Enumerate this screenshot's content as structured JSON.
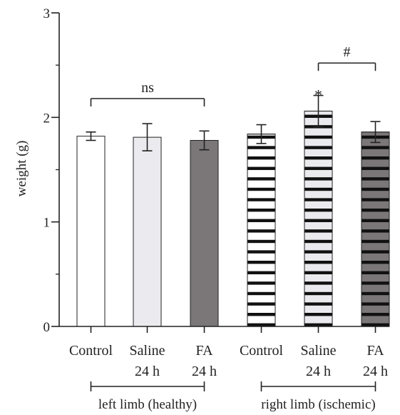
{
  "chart_data": {
    "type": "bar",
    "title": "",
    "xlabel": "",
    "ylabel": "weight (g)",
    "ylim": [
      0,
      3
    ],
    "yticks": [
      0,
      1,
      2,
      3
    ],
    "grid": false,
    "categories": [
      {
        "line1": "Control",
        "line2": ""
      },
      {
        "line1": "Saline",
        "line2": "24 h"
      },
      {
        "line1": "FA",
        "line2": "24 h"
      },
      {
        "line1": "Control",
        "line2": ""
      },
      {
        "line1": "Saline",
        "line2": "24 h"
      },
      {
        "line1": "FA",
        "line2": "24 h"
      }
    ],
    "bars": [
      {
        "value": 1.82,
        "error": 0.04,
        "fill": "#ffffff",
        "pattern": "none"
      },
      {
        "value": 1.81,
        "error": 0.13,
        "fill": "#ebebef",
        "pattern": "none"
      },
      {
        "value": 1.78,
        "error": 0.09,
        "fill": "#7b7779",
        "pattern": "none"
      },
      {
        "value": 1.84,
        "error": 0.09,
        "fill": "#ffffff",
        "pattern": "stripes"
      },
      {
        "value": 2.06,
        "error": 0.15,
        "fill": "#ebebef",
        "pattern": "stripes"
      },
      {
        "value": 1.86,
        "error": 0.1,
        "fill": "#7b7779",
        "pattern": "stripes"
      }
    ],
    "groups": [
      {
        "label": "left limb (healthy)",
        "from": 0,
        "to": 2
      },
      {
        "label": "right limb (ischemic)",
        "from": 3,
        "to": 5
      }
    ],
    "annotations": [
      {
        "type": "bracket",
        "text": "ns",
        "from": 0,
        "to": 2,
        "y": 2.18
      },
      {
        "type": "bracket",
        "text": "#",
        "from": 4,
        "to": 5,
        "y": 2.52
      },
      {
        "type": "star",
        "text": "*",
        "bar": 4,
        "y": 2.26
      }
    ]
  },
  "colors": {
    "axis": "#222222",
    "stripe": "#111111"
  }
}
